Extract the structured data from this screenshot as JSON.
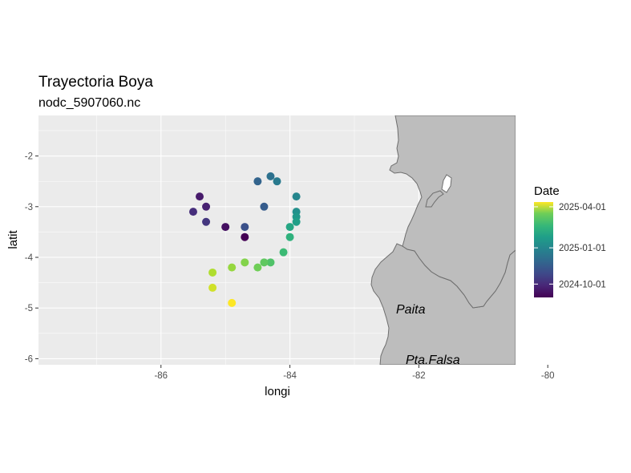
{
  "chart_data": {
    "type": "scatter",
    "title": "Trayectoria Boya",
    "subtitle": "nodc_5907060.nc",
    "xlabel": "longi",
    "ylabel": "latit",
    "xlim": [
      -87.9,
      -80.5
    ],
    "ylim": [
      -6.12,
      -1.2
    ],
    "x_ticks": [
      -86,
      -84,
      -82,
      -80
    ],
    "y_ticks": [
      -2,
      -3,
      -4,
      -5,
      -6
    ],
    "x_tick_labels": [
      "-86",
      "-84",
      "-82",
      "-80"
    ],
    "y_tick_labels": [
      "-2",
      "-3",
      "-4",
      "-5",
      "-6"
    ],
    "grid": true,
    "color_scale": "viridis",
    "legend": {
      "title": "Date",
      "placement": "right",
      "labels": [
        "2025-04-01",
        "2025-01-01",
        "2024-10-01"
      ],
      "label_values": [
        0.95,
        0.52,
        0.14
      ],
      "colors": [
        "#fde725",
        "#21918c",
        "#440154"
      ]
    },
    "points": [
      {
        "longi": -84.7,
        "latit": -3.6,
        "date_fraction": 0.0
      },
      {
        "longi": -85.0,
        "latit": -3.4,
        "date_fraction": 0.04
      },
      {
        "longi": -85.4,
        "latit": -2.8,
        "date_fraction": 0.07
      },
      {
        "longi": -85.3,
        "latit": -3.0,
        "date_fraction": 0.09
      },
      {
        "longi": -85.5,
        "latit": -3.1,
        "date_fraction": 0.13
      },
      {
        "longi": -85.3,
        "latit": -3.3,
        "date_fraction": 0.16
      },
      {
        "longi": -84.7,
        "latit": -3.4,
        "date_fraction": 0.25
      },
      {
        "longi": -84.4,
        "latit": -3.0,
        "date_fraction": 0.29
      },
      {
        "longi": -84.5,
        "latit": -2.5,
        "date_fraction": 0.32
      },
      {
        "longi": -84.3,
        "latit": -2.4,
        "date_fraction": 0.37
      },
      {
        "longi": -84.2,
        "latit": -2.5,
        "date_fraction": 0.41
      },
      {
        "longi": -83.9,
        "latit": -2.8,
        "date_fraction": 0.46
      },
      {
        "longi": -83.9,
        "latit": -3.1,
        "date_fraction": 0.5
      },
      {
        "longi": -83.9,
        "latit": -3.2,
        "date_fraction": 0.53
      },
      {
        "longi": -83.9,
        "latit": -3.3,
        "date_fraction": 0.56
      },
      {
        "longi": -84.0,
        "latit": -3.4,
        "date_fraction": 0.59
      },
      {
        "longi": -84.0,
        "latit": -3.6,
        "date_fraction": 0.64
      },
      {
        "longi": -84.1,
        "latit": -3.9,
        "date_fraction": 0.68
      },
      {
        "longi": -84.3,
        "latit": -4.1,
        "date_fraction": 0.72
      },
      {
        "longi": -84.4,
        "latit": -4.1,
        "date_fraction": 0.75
      },
      {
        "longi": -84.5,
        "latit": -4.2,
        "date_fraction": 0.78
      },
      {
        "longi": -84.7,
        "latit": -4.1,
        "date_fraction": 0.81
      },
      {
        "longi": -84.9,
        "latit": -4.2,
        "date_fraction": 0.84
      },
      {
        "longi": -85.2,
        "latit": -4.3,
        "date_fraction": 0.88
      },
      {
        "longi": -85.2,
        "latit": -4.6,
        "date_fraction": 0.93
      },
      {
        "longi": -84.9,
        "latit": -4.9,
        "date_fraction": 1.0
      }
    ],
    "annotations": [
      {
        "text": "Paita",
        "longi": -80.5,
        "latit": -5.0
      },
      {
        "text": "Pta.Falsa",
        "longi": -80.0,
        "latit": -6.0
      }
    ],
    "land_color": "#bdbdbd",
    "panel_color": "#ebebeb"
  }
}
